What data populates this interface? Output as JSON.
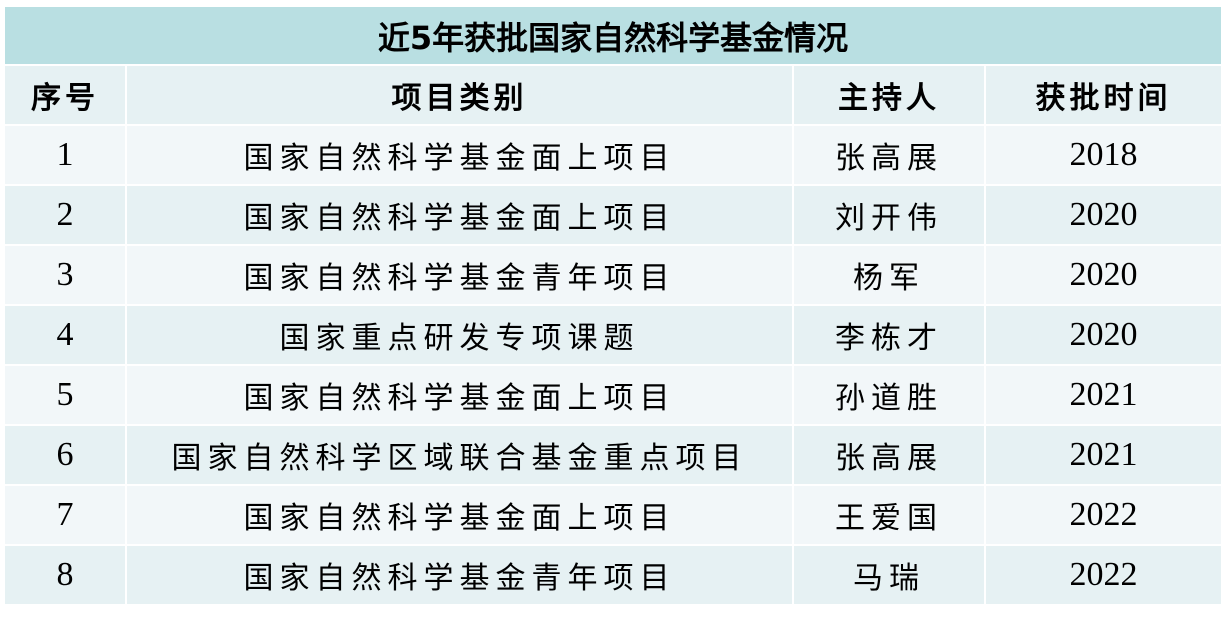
{
  "title": "近5年获批国家自然科学基金情况",
  "columns": [
    "序号",
    "项目类别",
    "主持人",
    "获批时间"
  ],
  "rows": [
    {
      "no": "1",
      "category": "国家自然科学基金面上项目",
      "pi": "张高展",
      "year": "2018"
    },
    {
      "no": "2",
      "category": "国家自然科学基金面上项目",
      "pi": "刘开伟",
      "year": "2020"
    },
    {
      "no": "3",
      "category": "国家自然科学基金青年项目",
      "pi": "杨军",
      "year": "2020"
    },
    {
      "no": "4",
      "category": "国家重点研发专项课题",
      "pi": "李栋才",
      "year": "2020"
    },
    {
      "no": "5",
      "category": "国家自然科学基金面上项目",
      "pi": "孙道胜",
      "year": "2021"
    },
    {
      "no": "6",
      "category": "国家自然科学区域联合基金重点项目",
      "pi": "张高展",
      "year": "2021"
    },
    {
      "no": "7",
      "category": "国家自然科学基金面上项目",
      "pi": "王爱国",
      "year": "2022"
    },
    {
      "no": "8",
      "category": "国家自然科学基金青年项目",
      "pi": "马瑞",
      "year": "2022"
    }
  ],
  "colors": {
    "title_bg": "#b9dfe2",
    "header_bg": "#e6f1f3",
    "odd_row_bg": "#f2f7f9",
    "even_row_bg": "#e6f1f3"
  }
}
